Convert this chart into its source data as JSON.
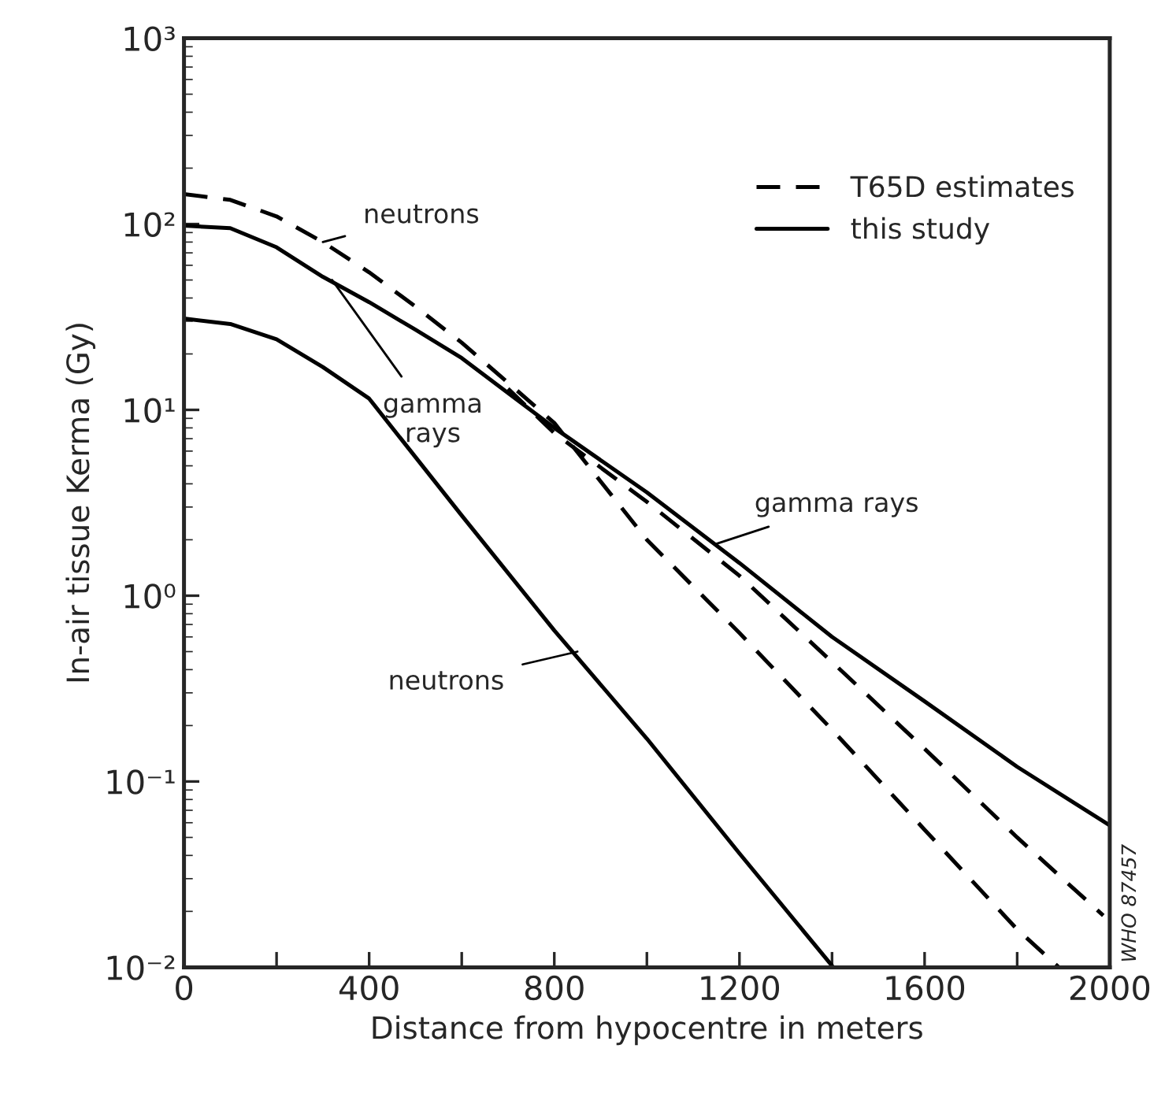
{
  "chart_data": {
    "type": "line",
    "xlabel": "Distance from hypocentre in meters",
    "ylabel": "In-air tissue Kerma (Gy)",
    "log": "y",
    "xlim": [
      0,
      2000
    ],
    "ylim": [
      0.01,
      1000
    ],
    "xticks": [
      0,
      {
        "value": 200,
        "label": null
      },
      400,
      {
        "value": 600,
        "label": null
      },
      800,
      {
        "value": 1000,
        "label": null
      },
      1200,
      {
        "value": 1400,
        "label": null
      },
      1600,
      {
        "value": 1800,
        "label": null
      },
      2000
    ],
    "yticks": [
      {
        "value": 0.01,
        "label": "10⁻²"
      },
      {
        "value": 0.1,
        "label": "10⁻¹"
      },
      {
        "value": 1,
        "label": "10⁰"
      },
      {
        "value": 10,
        "label": "10¹"
      },
      {
        "value": 100,
        "label": "10²"
      },
      {
        "value": 1000,
        "label": "10³"
      }
    ],
    "grid": false,
    "legend": "top right",
    "marker": "none",
    "series": [
      {
        "name": "T65D estimates",
        "color": "#000000",
        "line_style": "dashed",
        "x": [
          0,
          100,
          200,
          300,
          400,
          500,
          600,
          700,
          800,
          1000,
          1200,
          1400,
          1600,
          1800,
          1890
        ],
        "values": [
          145,
          135,
          110,
          80,
          55,
          36,
          23,
          14,
          8.5,
          2.0,
          0.63,
          0.19,
          0.055,
          0.016,
          0.01
        ]
      },
      {
        "color": "#000000",
        "line_style": "dashed",
        "x": [
          700,
          800,
          1000,
          1200,
          1400,
          1600,
          1800,
          1986
        ],
        "values": [
          13,
          7.5,
          3.2,
          1.28,
          0.44,
          0.15,
          0.05,
          0.019
        ]
      },
      {
        "name": "this study",
        "color": "#000000",
        "line_style": "solid",
        "x": [
          0,
          100,
          200,
          300,
          400,
          500,
          600,
          800,
          1000,
          1200,
          1400,
          1600,
          1800,
          2000
        ],
        "values": [
          98,
          95,
          75,
          52,
          38,
          27,
          19,
          8,
          3.6,
          1.5,
          0.6,
          0.27,
          0.12,
          0.058
        ]
      },
      {
        "color": "#000000",
        "line_style": "solid",
        "x": [
          0,
          100,
          200,
          300,
          400,
          600,
          800,
          1000,
          1200,
          1400
        ],
        "values": [
          31,
          29,
          24,
          17,
          11.5,
          2.7,
          0.65,
          0.17,
          0.041,
          0.0102
        ]
      }
    ],
    "annotations": [
      {
        "text": "neutrons",
        "x": 300,
        "y": 80
      },
      {
        "text": "gamma\nrays",
        "x": 320,
        "y": 50
      },
      {
        "text": "gamma rays",
        "x": 1150,
        "y": 1.9
      },
      {
        "text": "neutrons",
        "x": 850,
        "y": 0.5
      },
      "WHO 87457"
    ]
  }
}
